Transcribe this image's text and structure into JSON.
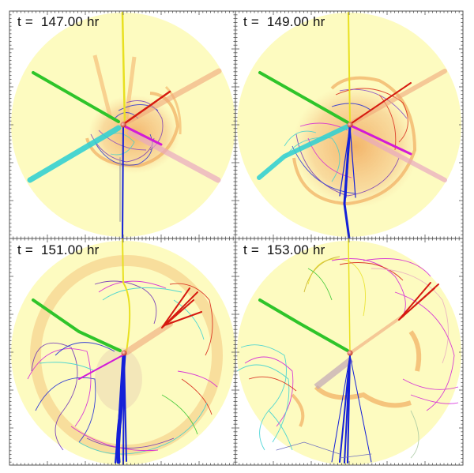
{
  "figure": {
    "background": "#ffffff",
    "frame_color": "#555555",
    "disk_color": "#FDFBC0",
    "panels": [
      {
        "id": "p1",
        "label": "t =  147.00 hr",
        "time_hr": 147.0
      },
      {
        "id": "p2",
        "label": "t =  149.00 hr",
        "time_hr": 149.0
      },
      {
        "id": "p3",
        "label": "t =  151.00 hr",
        "time_hr": 151.0
      },
      {
        "id": "p4",
        "label": "t =  153.00 hr",
        "time_hr": 153.0
      }
    ],
    "fieldline_colors": {
      "yellow": "#E8E020",
      "green": "#2FC42A",
      "red": "#D61A10",
      "salmon": "#F0A67A",
      "cyan": "#35D0D2",
      "magenta": "#D21AD8",
      "pink": "#E8A8C0",
      "blue": "#1420D8",
      "purple": "#6A2AB8",
      "orange_plasma": "#F09A40",
      "grey": "#A0A0A0"
    }
  }
}
